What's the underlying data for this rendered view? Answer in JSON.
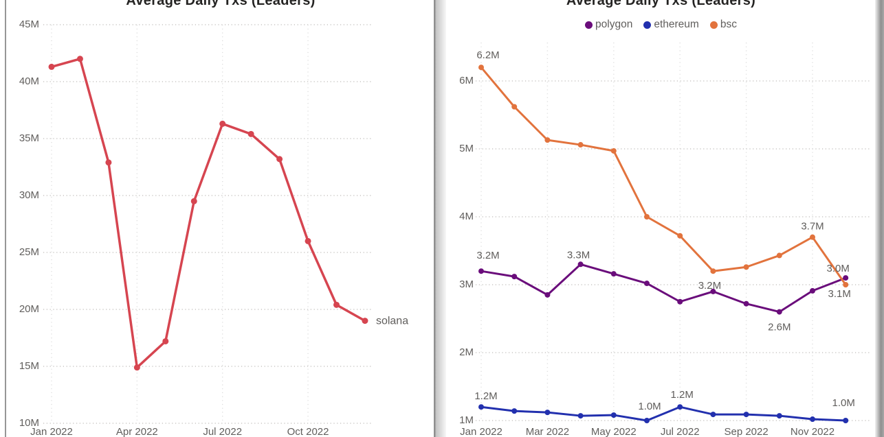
{
  "page": {
    "background": "#ffffff"
  },
  "chart_data": [
    {
      "id": "solana-chart",
      "type": "line",
      "title": "Average Daily Txs (Leaders)",
      "ylabel": "",
      "xlabel": "",
      "unit": "M",
      "ylim": [
        10,
        45
      ],
      "grid": true,
      "legend_position": "none",
      "x": [
        "Jan 2022",
        "Feb 2022",
        "Mar 2022",
        "Apr 2022",
        "May 2022",
        "Jun 2022",
        "Jul 2022",
        "Aug 2022",
        "Sep 2022",
        "Oct 2022",
        "Nov 2022",
        "Dec 2022"
      ],
      "x_tick_labels": [
        {
          "index": 0,
          "label": "Jan 2022"
        },
        {
          "index": 3,
          "label": "Apr 2022"
        },
        {
          "index": 6,
          "label": "Jul 2022"
        },
        {
          "index": 9,
          "label": "Oct 2022"
        }
      ],
      "y_ticks": [
        {
          "value": 45,
          "label": "45M"
        },
        {
          "value": 40,
          "label": "40M"
        },
        {
          "value": 35,
          "label": "35M"
        },
        {
          "value": 30,
          "label": "30M"
        },
        {
          "value": 25,
          "label": "25M"
        },
        {
          "value": 20,
          "label": "20M"
        },
        {
          "value": 15,
          "label": "15M"
        },
        {
          "value": 10,
          "label": "10M"
        }
      ],
      "series": [
        {
          "name": "solana",
          "color": "#D64550",
          "end_label": "solana",
          "values": [
            41.3,
            42.0,
            32.9,
            14.9,
            17.2,
            29.5,
            36.3,
            35.4,
            33.2,
            26.0,
            20.4,
            19.0
          ],
          "point_labels": []
        }
      ]
    },
    {
      "id": "leaders-chart",
      "type": "line",
      "title": "Average Daily Txs (Leaders)",
      "ylabel": "",
      "xlabel": "",
      "unit": "M",
      "ylim": [
        1,
        6.5
      ],
      "grid": true,
      "legend_position": "top",
      "legend": [
        "polygon",
        "ethereum",
        "bsc"
      ],
      "x": [
        "Jan 2022",
        "Feb 2022",
        "Mar 2022",
        "Apr 2022",
        "May 2022",
        "Jun 2022",
        "Jul 2022",
        "Aug 2022",
        "Sep 2022",
        "Oct 2022",
        "Nov 2022",
        "Dec 2022"
      ],
      "x_tick_labels": [
        {
          "index": 0,
          "label": "Jan 2022"
        },
        {
          "index": 2,
          "label": "Mar 2022"
        },
        {
          "index": 4,
          "label": "May 2022"
        },
        {
          "index": 6,
          "label": "Jul 2022"
        },
        {
          "index": 8,
          "label": "Sep 2022"
        },
        {
          "index": 10,
          "label": "Nov 2022"
        }
      ],
      "y_ticks": [
        {
          "value": 6,
          "label": "6M"
        },
        {
          "value": 5,
          "label": "5M"
        },
        {
          "value": 4,
          "label": "4M"
        },
        {
          "value": 3,
          "label": "3M"
        },
        {
          "value": 2,
          "label": "2M"
        },
        {
          "value": 1,
          "label": "1M"
        }
      ],
      "series": [
        {
          "name": "polygon",
          "color": "#6A0D7B",
          "values": [
            3.2,
            3.12,
            2.85,
            3.3,
            3.16,
            3.02,
            2.75,
            2.9,
            2.72,
            2.6,
            2.91,
            3.1
          ],
          "point_labels": [
            {
              "index": 0,
              "text": "3.2M",
              "dx": 10,
              "dy": -23
            },
            {
              "index": 3,
              "text": "3.3M",
              "dx": -3,
              "dy": -14
            },
            {
              "index": 9,
              "text": "2.6M",
              "dx": 0,
              "dy": 22
            },
            {
              "index": 11,
              "text": "3.1M",
              "dx": -9,
              "dy": 23
            }
          ]
        },
        {
          "name": "ethereum",
          "color": "#2230AE",
          "values": [
            1.2,
            1.14,
            1.12,
            1.07,
            1.08,
            1.0,
            1.2,
            1.09,
            1.09,
            1.07,
            1.02,
            1.0
          ],
          "point_labels": [
            {
              "index": 0,
              "text": "1.2M",
              "dx": 7,
              "dy": -16
            },
            {
              "index": 5,
              "text": "1.0M",
              "dx": 4,
              "dy": -21
            },
            {
              "index": 6,
              "text": "1.2M",
              "dx": 3,
              "dy": -18
            },
            {
              "index": 11,
              "text": "1.0M",
              "dx": -3,
              "dy": -26
            }
          ]
        },
        {
          "name": "bsc",
          "color": "#E2733D",
          "values": [
            6.2,
            5.62,
            5.13,
            5.06,
            4.97,
            4.0,
            3.72,
            3.2,
            3.26,
            3.43,
            3.7,
            3.0
          ],
          "point_labels": [
            {
              "index": 0,
              "text": "6.2M",
              "dx": 10,
              "dy": -18
            },
            {
              "index": 7,
              "text": "3.2M",
              "dx": -5,
              "dy": 21
            },
            {
              "index": 10,
              "text": "3.7M",
              "dx": 0,
              "dy": -16
            },
            {
              "index": 11,
              "text": "3.0M",
              "dx": -11,
              "dy": -24
            }
          ]
        }
      ]
    }
  ]
}
